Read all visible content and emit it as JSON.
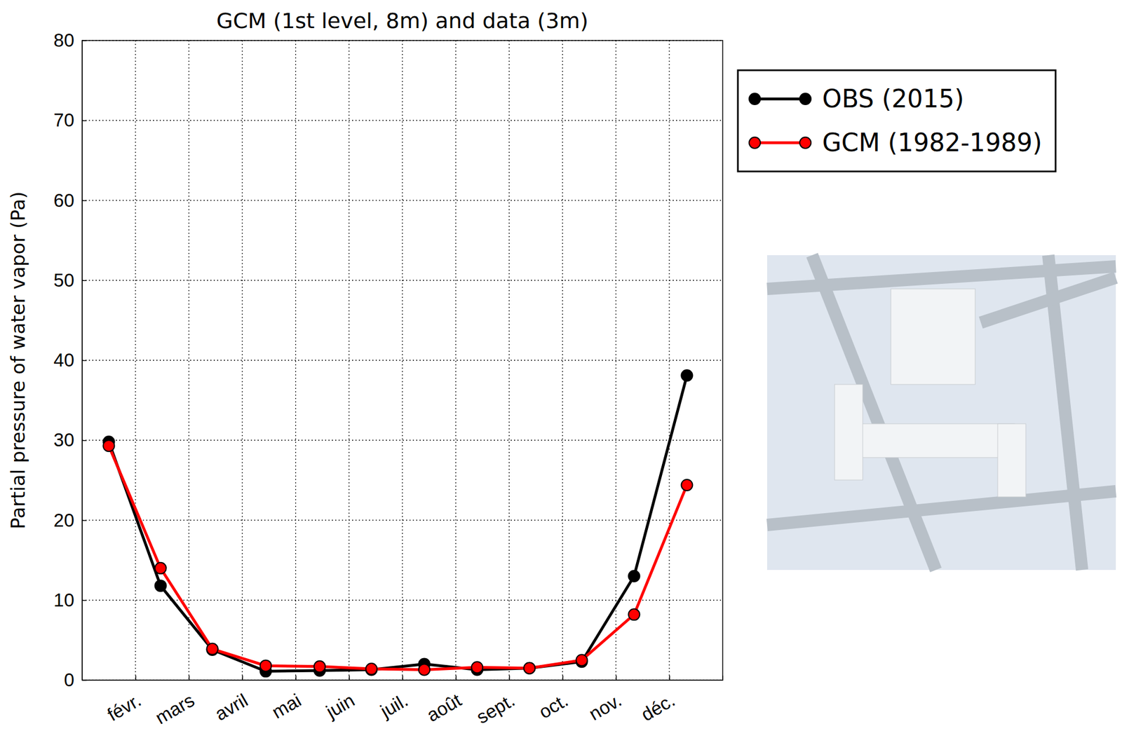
{
  "chart_data": {
    "type": "line",
    "title": "GCM (1st level, 8m) and data (3m)",
    "y_label": "Partial pressure of water vapor (Pa)",
    "x": [
      0.5,
      1.47,
      2.44,
      3.44,
      4.45,
      5.42,
      6.41,
      7.4,
      8.38,
      9.36,
      10.34,
      11.33
    ],
    "series": [
      {
        "name": "OBS (2015)",
        "color": "#000000",
        "marker": "circle",
        "line_style": "solid",
        "values": [
          29.8,
          11.8,
          3.8,
          1.1,
          1.2,
          1.3,
          2.0,
          1.3,
          1.5,
          2.3,
          13.0,
          38.1
        ]
      },
      {
        "name": "GCM (1982-1989)",
        "color": "#ff0000",
        "marker": "circle",
        "line_style": "solid",
        "values": [
          29.3,
          14.0,
          3.9,
          1.8,
          1.7,
          1.4,
          1.3,
          1.6,
          1.5,
          2.5,
          8.2,
          24.4
        ]
      }
    ],
    "xlim": [
      0,
      12
    ],
    "xticks": [
      {
        "value": 1,
        "label": "févr."
      },
      {
        "value": 2,
        "label": "mars"
      },
      {
        "value": 3,
        "label": "avril"
      },
      {
        "value": 4,
        "label": "mai"
      },
      {
        "value": 5,
        "label": "juin"
      },
      {
        "value": 6,
        "label": "juil."
      },
      {
        "value": 7,
        "label": "août"
      },
      {
        "value": 8,
        "label": "sept."
      },
      {
        "value": 9,
        "label": "oct."
      },
      {
        "value": 10,
        "label": "nov."
      },
      {
        "value": 11,
        "label": "déc."
      }
    ],
    "ylim": [
      0,
      80
    ],
    "yticks": [
      0,
      10,
      20,
      30,
      40,
      50,
      60,
      70,
      80
    ],
    "grid": true,
    "legend": "right"
  }
}
